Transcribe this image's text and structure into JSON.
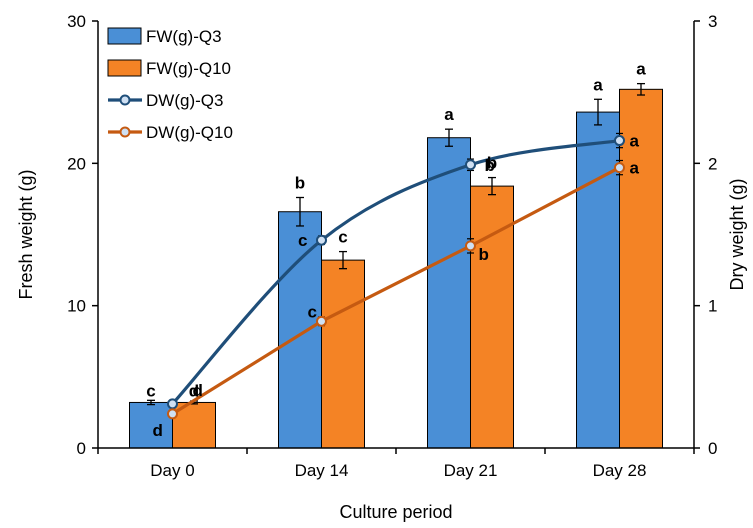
{
  "chart_data": {
    "type": "bar",
    "categories": [
      "Day 0",
      "Day 14",
      "Day 21",
      "Day 28"
    ],
    "xlabel": "Culture period",
    "ylabel": "Fresh weight (g)",
    "y2label": "Dry weight (g)",
    "ylim": [
      0,
      30
    ],
    "y2lim": [
      0,
      3
    ],
    "yticks": [
      "0",
      "10",
      "20",
      "30"
    ],
    "y2ticks": [
      "0",
      "1",
      "2",
      "3"
    ],
    "grid": false,
    "legend_position": "top-left",
    "bar_series": [
      {
        "name": "FW(g)-Q3",
        "color": "#4a8fd6",
        "values": [
          3.2,
          16.6,
          21.8,
          23.6
        ],
        "errors": [
          0.15,
          1.0,
          0.6,
          0.9
        ],
        "labels": [
          "c",
          "b",
          "a",
          "a"
        ]
      },
      {
        "name": "FW(g)-Q10",
        "color": "#f48325",
        "values": [
          3.2,
          13.2,
          18.4,
          25.2
        ],
        "errors": [
          0.1,
          0.6,
          0.6,
          0.4
        ],
        "labels": [
          "d",
          "c",
          "b",
          "a"
        ]
      }
    ],
    "line_series": [
      {
        "name": "DW(g)-Q3",
        "color": "#1f4e79",
        "values": [
          0.31,
          1.46,
          1.99,
          2.16
        ],
        "errors": [
          0.02,
          0.03,
          0.04,
          0.05
        ],
        "labels": [
          "d",
          "c",
          "b",
          "a"
        ],
        "smooth": true
      },
      {
        "name": "DW(g)-Q10",
        "color": "#c55a11",
        "values": [
          0.24,
          0.89,
          1.42,
          1.97
        ],
        "errors": [
          0.02,
          0.03,
          0.05,
          0.05
        ],
        "labels": [
          "d",
          "c",
          "b",
          "a"
        ],
        "smooth": false
      }
    ]
  }
}
